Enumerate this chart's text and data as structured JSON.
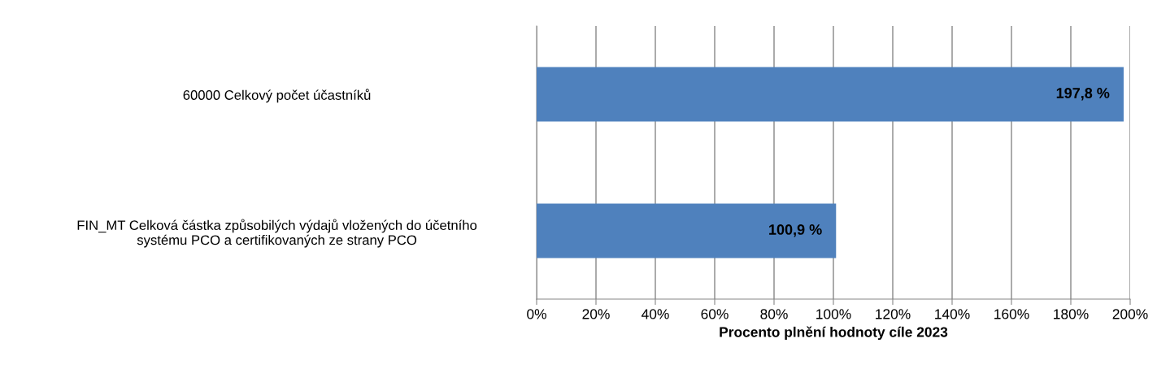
{
  "chart_data": {
    "type": "bar",
    "orientation": "horizontal",
    "xlabel": "Procento plnění hodnoty cíle 2023",
    "categories": [
      "60000 Celkový počet účastníků",
      "FIN_MT Celková částka způsobilých výdajů vložených do účetního\nsystému PCO a certifikovaných ze strany PCO"
    ],
    "values": [
      197.8,
      100.9
    ],
    "color": "#4f81bd",
    "value_labels": [
      "197,8 %",
      "100,9 %"
    ],
    "xlim": [
      0,
      200
    ],
    "xticks": [
      {
        "value": 0,
        "label": "0%"
      },
      {
        "value": 20,
        "label": "20%"
      },
      {
        "value": 40,
        "label": "40%"
      },
      {
        "value": 60,
        "label": "60%"
      },
      {
        "value": 80,
        "label": "80%"
      },
      {
        "value": 100,
        "label": "100%"
      },
      {
        "value": 120,
        "label": "120%"
      },
      {
        "value": 140,
        "label": "140%"
      },
      {
        "value": 160,
        "label": "160%"
      },
      {
        "value": 180,
        "label": "180%"
      },
      {
        "value": 200,
        "label": "200%"
      }
    ],
    "grid": "x"
  }
}
